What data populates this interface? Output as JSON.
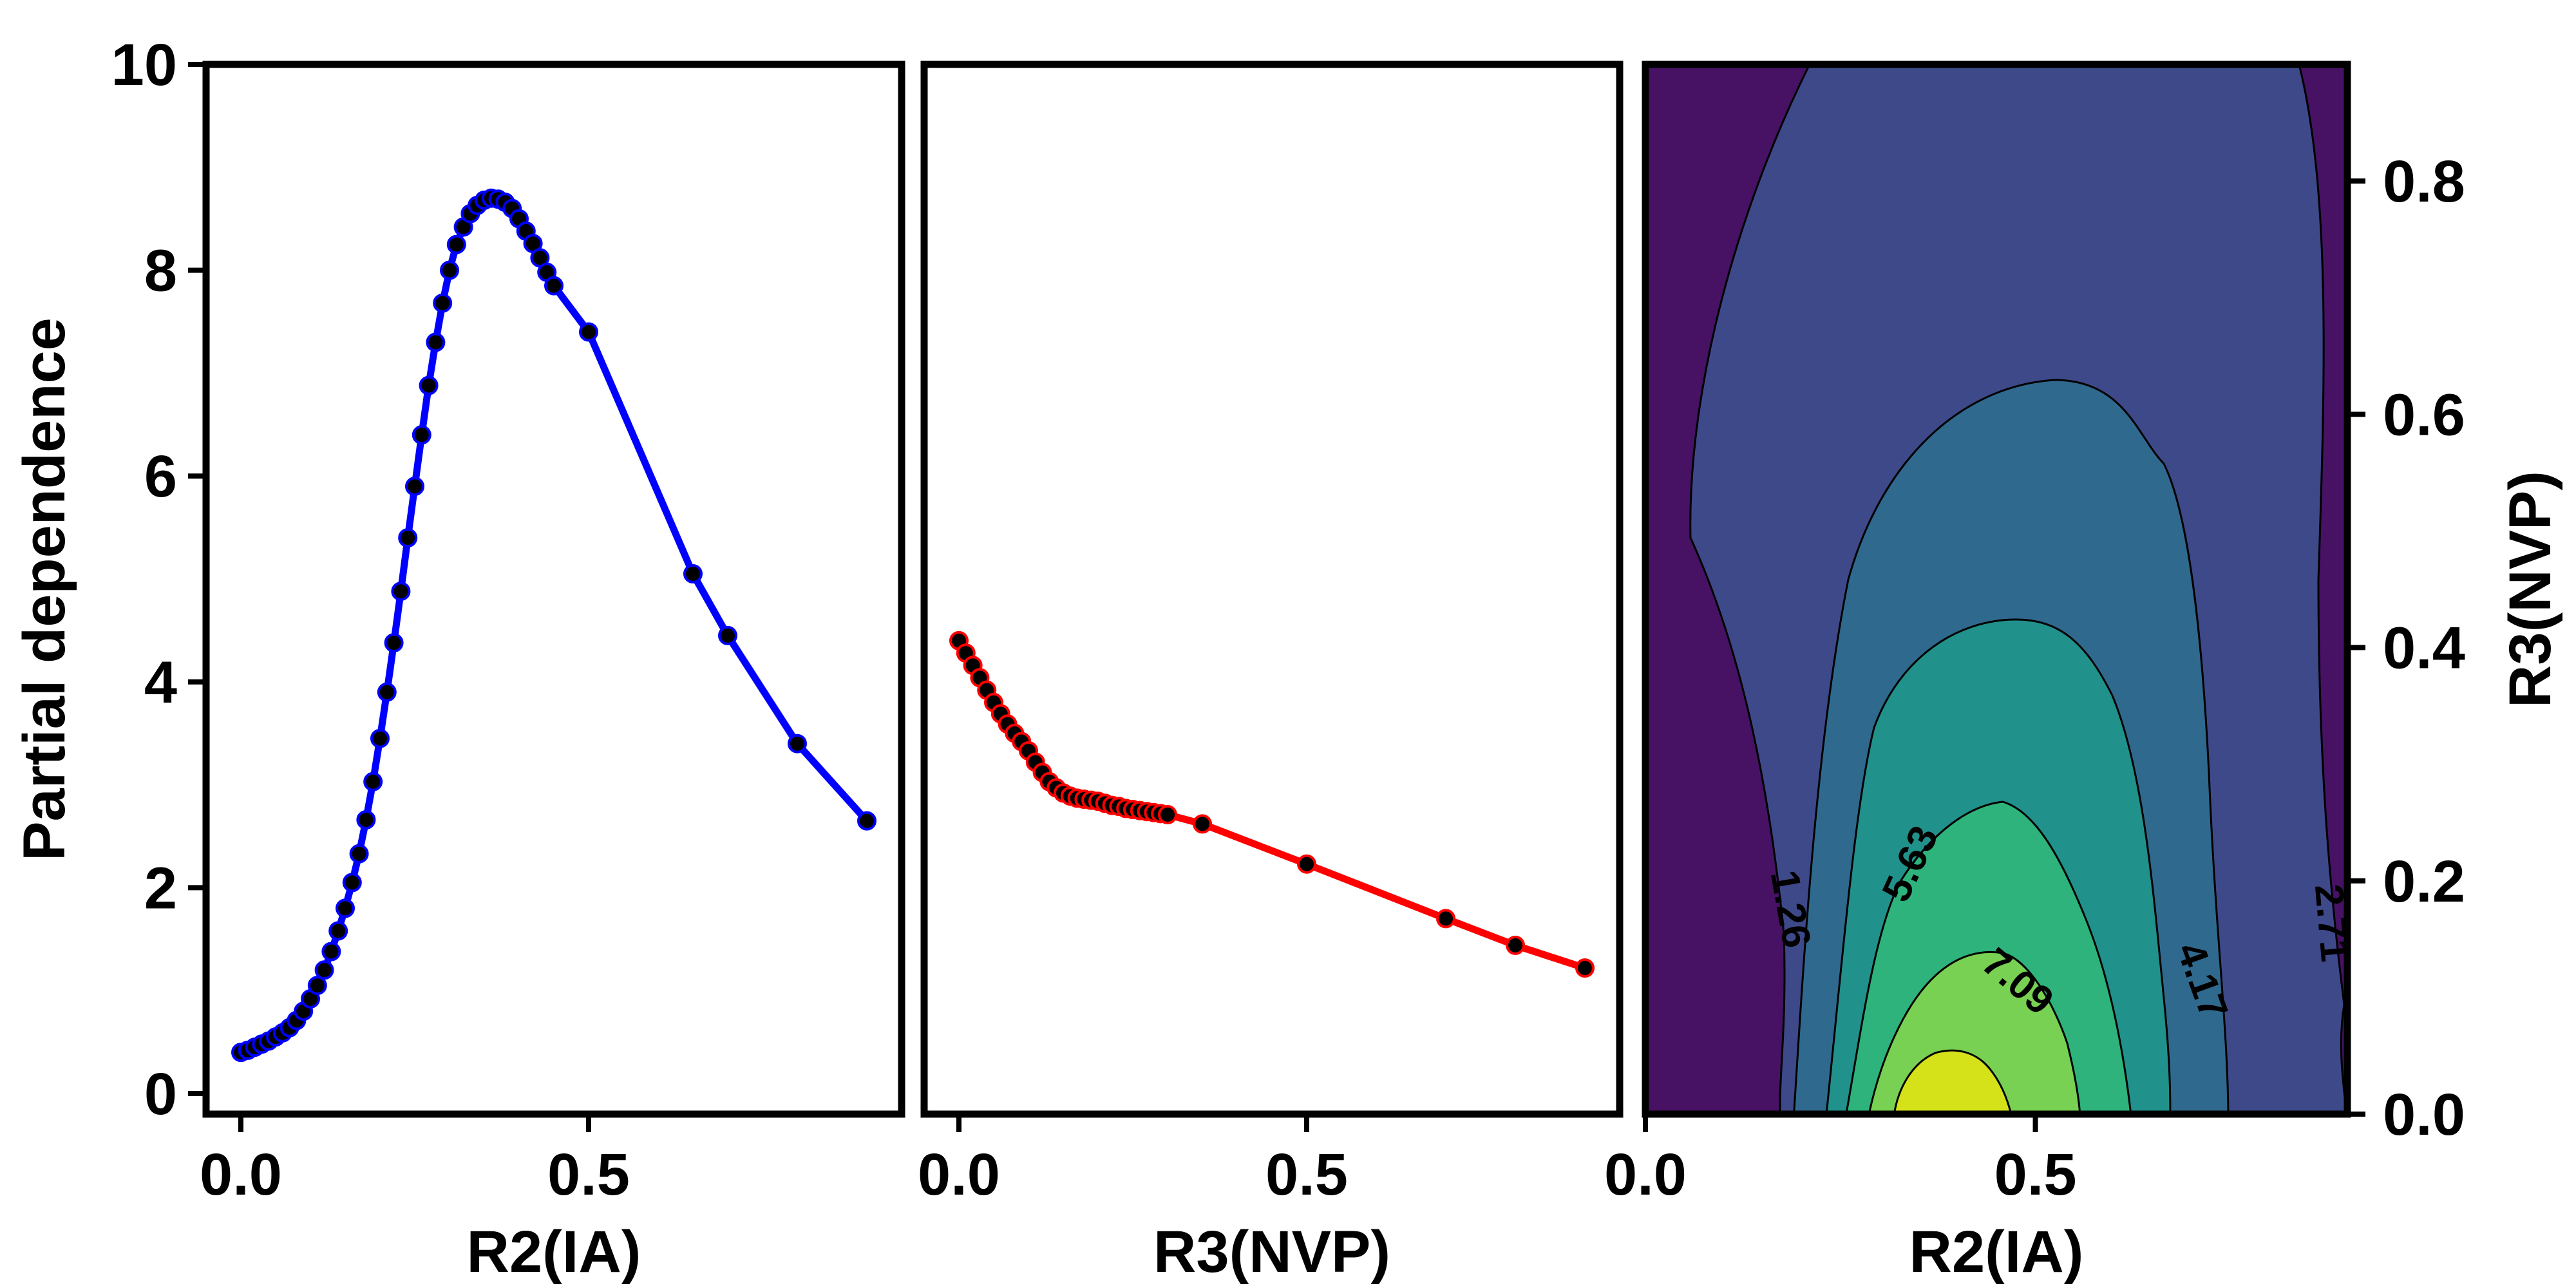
{
  "chart_data": [
    {
      "type": "line",
      "xlabel": "R2(IA)",
      "ylabel": "Partial dependence",
      "xlim": [
        -0.05,
        0.95
      ],
      "ylim": [
        -0.2,
        10
      ],
      "xticks": [
        0.0,
        0.5
      ],
      "yticks": [
        0,
        2,
        4,
        6,
        8,
        10
      ],
      "line_color": "#0000ff",
      "marker_color": "#000000",
      "series": [
        {
          "x": [
            0.0,
            0.01,
            0.02,
            0.03,
            0.04,
            0.05,
            0.06,
            0.07,
            0.08,
            0.09,
            0.1,
            0.11,
            0.12,
            0.13,
            0.14,
            0.15,
            0.16,
            0.17,
            0.18,
            0.19,
            0.2,
            0.21,
            0.22,
            0.23,
            0.24,
            0.25,
            0.26,
            0.27,
            0.28,
            0.29,
            0.3,
            0.31,
            0.32,
            0.33,
            0.34,
            0.35,
            0.36,
            0.37,
            0.38,
            0.39,
            0.4,
            0.41,
            0.42,
            0.43,
            0.44,
            0.45,
            0.5,
            0.65,
            0.7,
            0.8,
            0.9
          ],
          "y": [
            0.4,
            0.42,
            0.45,
            0.48,
            0.51,
            0.55,
            0.59,
            0.64,
            0.71,
            0.8,
            0.92,
            1.05,
            1.2,
            1.38,
            1.58,
            1.8,
            2.05,
            2.33,
            2.66,
            3.03,
            3.45,
            3.9,
            4.38,
            4.88,
            5.4,
            5.9,
            6.4,
            6.88,
            7.3,
            7.68,
            8.0,
            8.25,
            8.42,
            8.55,
            8.63,
            8.68,
            8.7,
            8.69,
            8.66,
            8.6,
            8.5,
            8.38,
            8.26,
            8.12,
            7.98,
            7.85,
            7.4,
            5.05,
            4.45,
            3.4,
            2.65
          ]
        }
      ]
    },
    {
      "type": "line",
      "xlabel": "R3(NVP)",
      "ylabel": "",
      "xlim": [
        -0.05,
        0.95
      ],
      "ylim": [
        -0.2,
        10
      ],
      "xticks": [
        0.0,
        0.5
      ],
      "line_color": "#ff0000",
      "marker_color": "#000000",
      "series": [
        {
          "x": [
            0.0,
            0.01,
            0.02,
            0.03,
            0.04,
            0.05,
            0.06,
            0.07,
            0.08,
            0.09,
            0.1,
            0.11,
            0.12,
            0.13,
            0.14,
            0.15,
            0.16,
            0.17,
            0.18,
            0.19,
            0.2,
            0.21,
            0.22,
            0.23,
            0.24,
            0.25,
            0.26,
            0.27,
            0.28,
            0.29,
            0.3,
            0.35,
            0.5,
            0.7,
            0.8,
            0.9
          ],
          "y": [
            4.4,
            4.28,
            4.16,
            4.04,
            3.92,
            3.8,
            3.69,
            3.59,
            3.5,
            3.42,
            3.33,
            3.22,
            3.12,
            3.03,
            2.97,
            2.92,
            2.89,
            2.87,
            2.86,
            2.85,
            2.84,
            2.82,
            2.8,
            2.79,
            2.77,
            2.76,
            2.75,
            2.74,
            2.73,
            2.72,
            2.71,
            2.62,
            2.23,
            1.7,
            1.44,
            1.22
          ]
        }
      ]
    },
    {
      "type": "contour",
      "xlabel": "R2(IA)",
      "ylabel": "R3(NVP)",
      "xlim": [
        0.0,
        0.9
      ],
      "ylim": [
        0.0,
        0.9
      ],
      "xticks": [
        0.0,
        0.5
      ],
      "yticks": [
        0.0,
        0.2,
        0.4,
        0.6,
        0.8
      ],
      "levels": [
        1.26,
        2.71,
        4.17,
        5.63,
        7.09,
        8.55
      ],
      "level_labels": [
        "1.26",
        "2.71",
        "4.17",
        "5.63",
        "7.09"
      ],
      "level_colors": [
        "#471164",
        "#3e4989",
        "#30698e",
        "#21918c",
        "#2eb37c",
        "#78d152",
        "#d5e21a"
      ]
    }
  ]
}
